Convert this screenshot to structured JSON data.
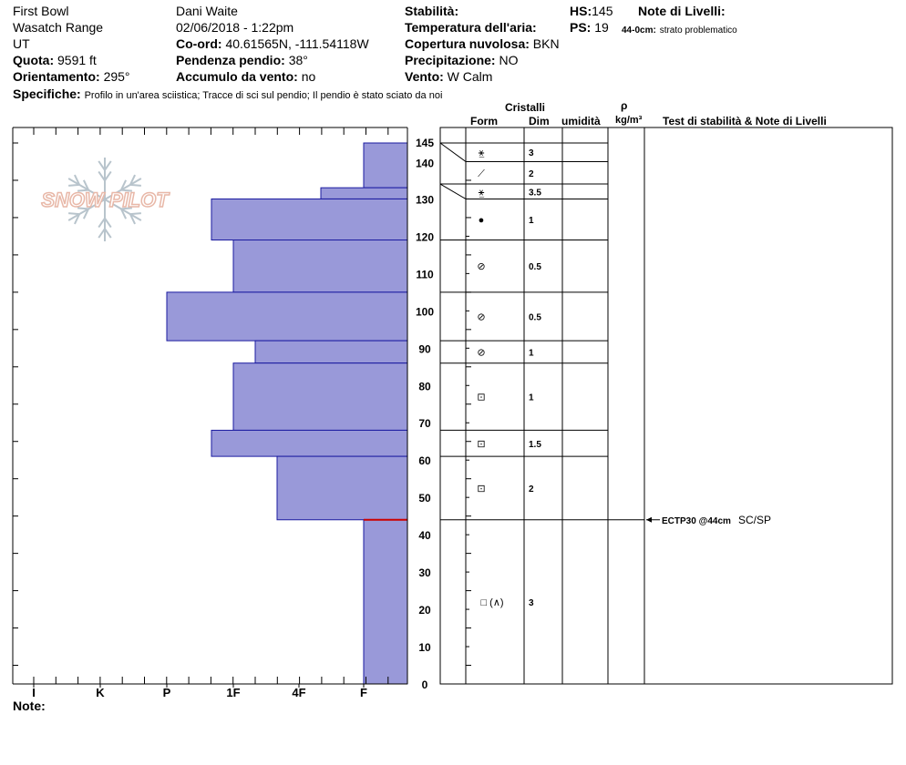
{
  "header": {
    "location": "First Bowl",
    "range": "Wasatch Range",
    "state": "UT",
    "elevation_label": "Quota:",
    "elevation_value": "9591 ft",
    "aspect_label": "Orientamento:",
    "aspect_value": "295°",
    "observer": "Dani Waite",
    "datetime": "02/06/2018 - 1:22pm",
    "coord_label": "Co-ord:",
    "coord_value": "40.61565N, -111.54118W",
    "slope_label": "Pendenza pendio:",
    "slope_value": "38°",
    "wind_loading_label": "Accumulo da vento:",
    "wind_loading_value": "no",
    "stability_label": "Stabilità:",
    "stability_value": "",
    "air_temp_label": "Temperatura dell'aria:",
    "air_temp_value": "",
    "cloud_label": "Copertura nuvolosa:",
    "cloud_value": "BKN",
    "precip_label": "Precipitazione:",
    "precip_value": "NO",
    "wind_label": "Vento:",
    "wind_value": "W Calm",
    "hs_label": "HS:",
    "hs_value": "145",
    "ps_label": "PS:",
    "ps_value": "19",
    "layer_notes_label": "Note di Livelli:",
    "layer_note_depth": "44-0cm:",
    "layer_note_text": "strato problematico",
    "specifics_label": "Specifiche:",
    "specifics_text": "Profilo in un'area sciistica; Tracce di sci sul pendio; Il pendio è stato sciato da noi"
  },
  "logo_text": "SNOW PILOT",
  "notes_label": "Note:",
  "columns": {
    "crystals": "Cristalli",
    "form": "Form",
    "size": "Dim",
    "moisture": "umidità",
    "density_symbol": "ρ",
    "density_unit": "kg/m³",
    "stability_notes": "Test di stabilità & Note di Livelli"
  },
  "stability_test": {
    "depth": 44,
    "label": "ECTP30 @44cm",
    "shear": "SC/SP"
  },
  "colors": {
    "bar_fill": "#9999d9",
    "bar_stroke": "#1a1aa0",
    "critical_line": "#cc0000",
    "logo": "#e8b8a8",
    "snowflake": "#b8c4cc"
  },
  "chart_data": {
    "type": "bar",
    "orientation": "horizontal",
    "title": "",
    "ylabel": "",
    "xlabel": "",
    "ylim": [
      0,
      150
    ],
    "y_ticks": [
      0,
      10,
      20,
      30,
      40,
      50,
      60,
      70,
      80,
      90,
      100,
      110,
      120,
      130,
      140,
      145
    ],
    "hardness_categories": [
      "I",
      "K",
      "P",
      "1F",
      "4F",
      "F"
    ],
    "layers": [
      {
        "top": 145,
        "bottom": 133,
        "hardness": "F",
        "form": "⚹",
        "size": "3"
      },
      {
        "top": 133,
        "bottom": 130,
        "hardness": "4F-",
        "form": "",
        "size": ""
      },
      {
        "top": 130,
        "bottom": 119,
        "hardness": "1F+",
        "form": "",
        "size": ""
      },
      {
        "top": 119,
        "bottom": 105,
        "hardness": "1F",
        "form": "",
        "size": ""
      },
      {
        "top": 105,
        "bottom": 92,
        "hardness": "P",
        "form": "",
        "size": ""
      },
      {
        "top": 92,
        "bottom": 86,
        "hardness": "1F-",
        "form": "",
        "size": ""
      },
      {
        "top": 86,
        "bottom": 68,
        "hardness": "1F",
        "form": "",
        "size": ""
      },
      {
        "top": 68,
        "bottom": 61,
        "hardness": "1F+",
        "form": "",
        "size": ""
      },
      {
        "top": 61,
        "bottom": 44,
        "hardness": "4F+",
        "form": "",
        "size": ""
      },
      {
        "top": 44,
        "bottom": 0,
        "hardness": "F",
        "form": "",
        "size": ""
      }
    ],
    "crystal_layers": [
      {
        "top": 145,
        "bottom": 140,
        "form": "⚹̲",
        "size": "3"
      },
      {
        "top": 140,
        "bottom": 134,
        "form": "⟋",
        "size": "2"
      },
      {
        "top": 134,
        "bottom": 130,
        "form": "⚹̲",
        "size": "3.5"
      },
      {
        "top": 130,
        "bottom": 119,
        "form": "●",
        "size": "1"
      },
      {
        "top": 119,
        "bottom": 105,
        "form": "⊘",
        "size": "0.5"
      },
      {
        "top": 105,
        "bottom": 92,
        "form": "⊘",
        "size": "0.5"
      },
      {
        "top": 92,
        "bottom": 86,
        "form": "⊘",
        "size": "1"
      },
      {
        "top": 86,
        "bottom": 68,
        "form": "⊡",
        "size": "1"
      },
      {
        "top": 68,
        "bottom": 61,
        "form": "⊡",
        "size": "1.5"
      },
      {
        "top": 61,
        "bottom": 44,
        "form": "⊡",
        "size": "2"
      },
      {
        "top": 44,
        "bottom": 0,
        "form": "□ (∧)",
        "size": "3"
      }
    ]
  }
}
